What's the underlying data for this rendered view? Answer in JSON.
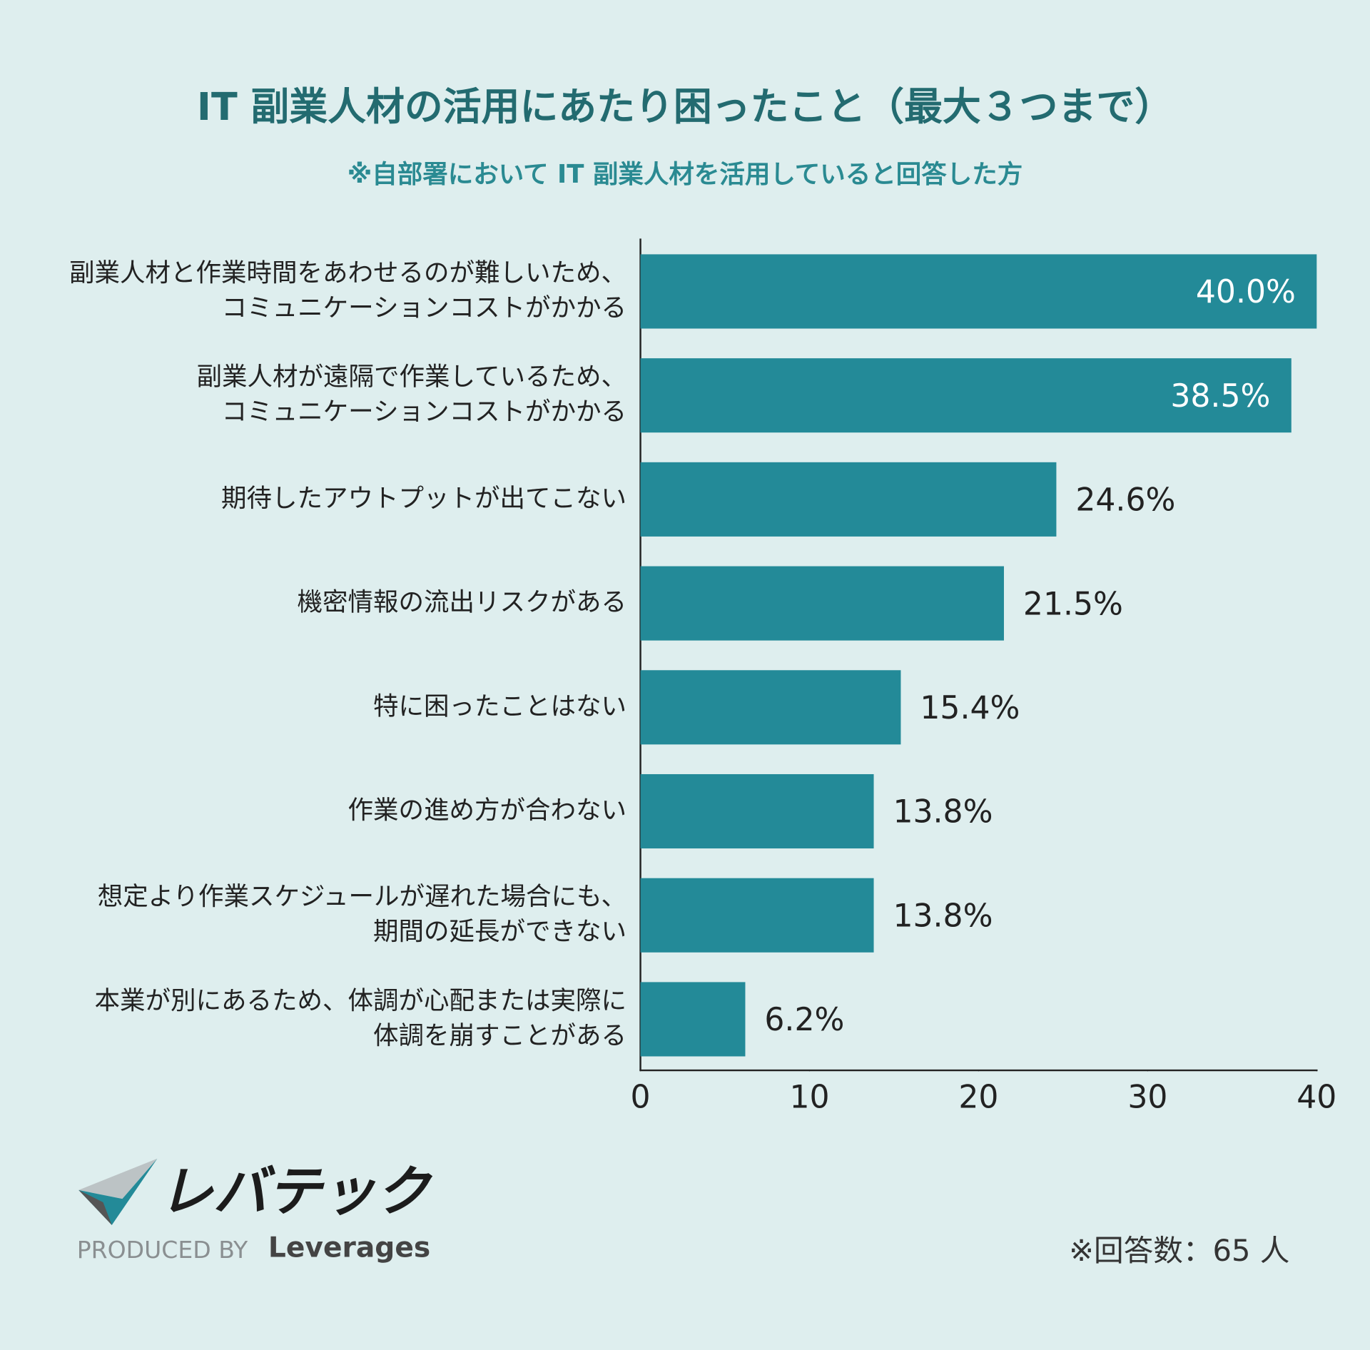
{
  "chart_data": {
    "type": "bar",
    "orientation": "horizontal",
    "title": "IT 副業人材の活用にあたり困ったこと（最大３つまで）",
    "subtitle": "※自部署において IT 副業人材を活用していると回答した方",
    "categories": [
      [
        "副業人材と作業時間をあわせるのが難しいため、",
        "コミュニケーションコストがかかる"
      ],
      [
        "副業人材が遠隔で作業しているため、",
        "コミュニケーションコストがかかる"
      ],
      [
        "期待したアウトプットが出てこない"
      ],
      [
        "機密情報の流出リスクがある"
      ],
      [
        "特に困ったことはない"
      ],
      [
        "作業の進め方が合わない"
      ],
      [
        "想定より作業スケジュールが遅れた場合にも、",
        "期間の延長ができない"
      ],
      [
        "本業が別にあるため、体調が心配または実際に",
        "体調を崩すことがある"
      ]
    ],
    "values": [
      40.0,
      38.5,
      24.6,
      21.5,
      15.4,
      13.8,
      13.8,
      6.2
    ],
    "value_labels": [
      "40.0%",
      "38.5%",
      "24.6%",
      "21.5%",
      "15.4%",
      "13.8%",
      "13.8%",
      "6.2%"
    ],
    "color": "#238a98",
    "xlim": [
      0,
      40
    ],
    "xticks": [
      0,
      10,
      20,
      30,
      40
    ],
    "grid": false,
    "note": "※回答数：65 人"
  },
  "logo": {
    "name": "レバテック",
    "produced_by": "PRODUCED BY",
    "brand": "Leverages"
  }
}
